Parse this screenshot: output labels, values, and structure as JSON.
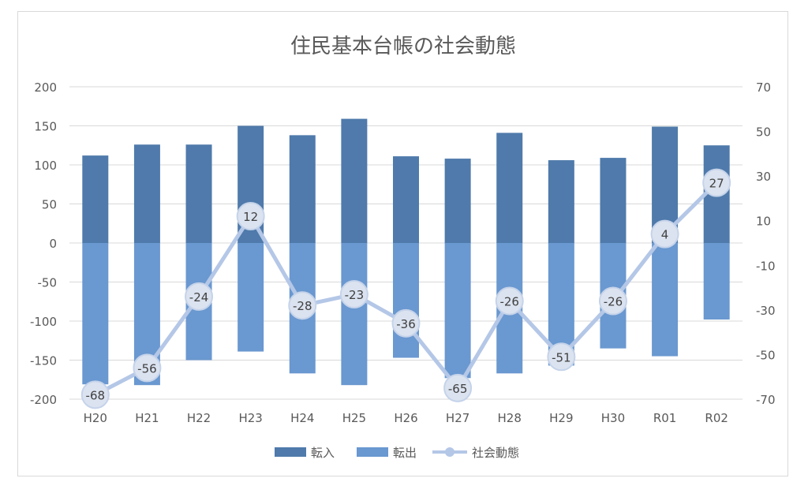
{
  "chart_data": {
    "type": "bar",
    "title": "住民基本台帳の社会動態",
    "categories": [
      "H20",
      "H21",
      "H22",
      "H23",
      "H24",
      "H25",
      "H26",
      "H27",
      "H28",
      "H29",
      "H30",
      "R01",
      "R02"
    ],
    "series": [
      {
        "name": "転入",
        "type": "bar",
        "axis": "left",
        "color": "#4f7aab",
        "values": [
          112,
          126,
          126,
          150,
          138,
          159,
          111,
          108,
          141,
          106,
          109,
          149,
          125
        ]
      },
      {
        "name": "転出",
        "type": "bar",
        "axis": "left",
        "color": "#6a98d0",
        "values": [
          -181,
          -182,
          -150,
          -139,
          -167,
          -182,
          -147,
          -173,
          -167,
          -157,
          -135,
          -145,
          -98
        ]
      },
      {
        "name": "社会動態",
        "type": "line",
        "axis": "right",
        "color": "#b4c7e7",
        "values": [
          -68,
          -56,
          -24,
          12,
          -28,
          -23,
          -36,
          -65,
          -26,
          -51,
          -26,
          4,
          27
        ]
      }
    ],
    "y_left": {
      "ylim": [
        -200,
        200
      ],
      "ticks": [
        200,
        150,
        100,
        50,
        0,
        -50,
        -100,
        -150,
        -200
      ]
    },
    "y_right": {
      "ylim": [
        -70,
        70
      ],
      "ticks": [
        70,
        50,
        30,
        10,
        -10,
        -30,
        -50,
        -70
      ]
    },
    "grid": true,
    "legend": "bottom"
  }
}
